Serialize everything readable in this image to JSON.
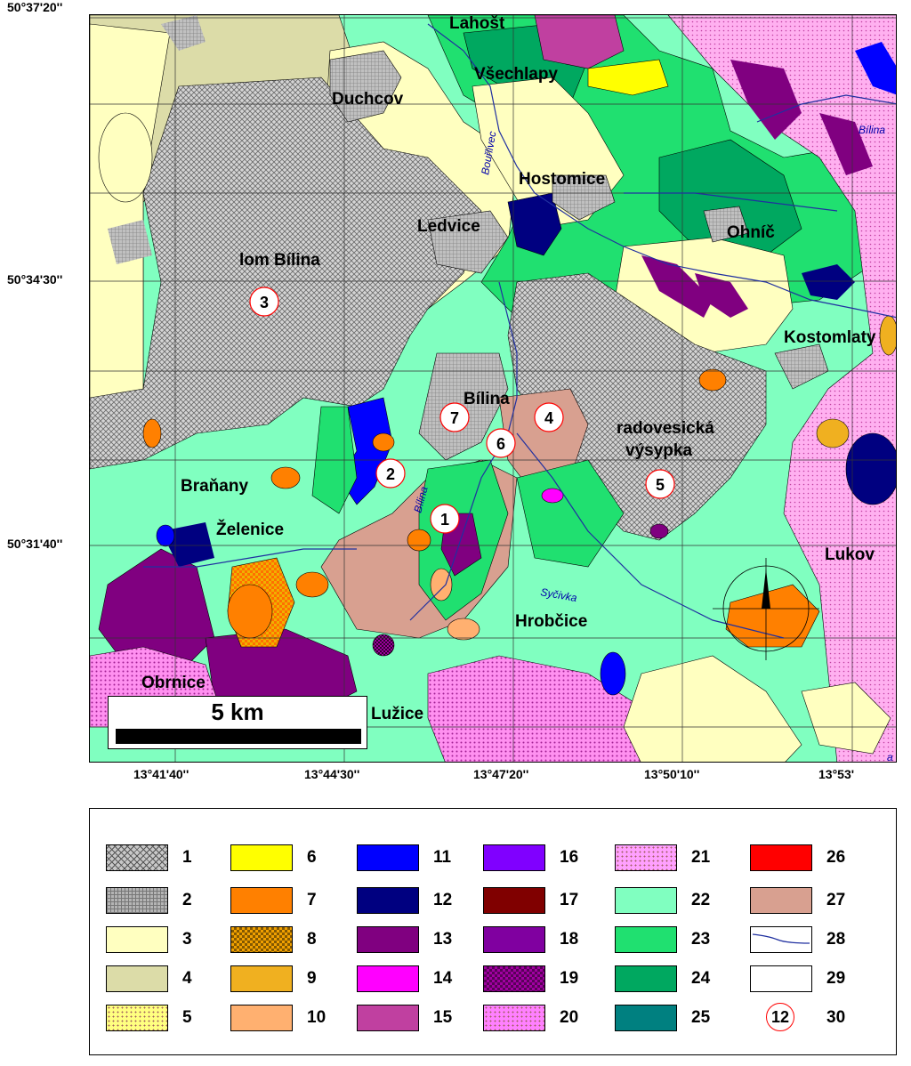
{
  "coordinates": {
    "latitudes": [
      "50°37'20''",
      "50°34'30''",
      "50°31'40''"
    ],
    "longitudes": [
      "13°41'40''",
      "13°44'30''",
      "13°47'20''",
      "13°50'10''",
      "13°53'"
    ]
  },
  "places": [
    "Lahošt",
    "Všechlapy",
    "Duchcov",
    "Hostomice",
    "Ledvice",
    "Ohníč",
    "lom Bílina",
    "Kostomlaty",
    "Bílina",
    "radovesická",
    "výsypka",
    "Braňany",
    "Želenice",
    "Lukov",
    "Hrobčice",
    "Obrnice",
    "Lužice"
  ],
  "rivers": [
    "Bouřlivec",
    "Bílina",
    "Bílina",
    "Syčivka",
    "a"
  ],
  "sites": [
    "1",
    "2",
    "3",
    "4",
    "5",
    "6",
    "7"
  ],
  "scale": {
    "label": "5 km"
  },
  "legend": {
    "items": [
      {
        "num": "1",
        "color": "#c8c8c8",
        "pattern": "crosshatch"
      },
      {
        "num": "2",
        "color": "#b4b4b4",
        "pattern": "grid"
      },
      {
        "num": "3",
        "color": "#ffffc0",
        "pattern": "solid"
      },
      {
        "num": "4",
        "color": "#dcdca8",
        "pattern": "solid"
      },
      {
        "num": "5",
        "color": "#ffff80",
        "pattern": "dots"
      },
      {
        "num": "6",
        "color": "#ffff00",
        "pattern": "solid"
      },
      {
        "num": "7",
        "color": "#ff8000",
        "pattern": "solid"
      },
      {
        "num": "8",
        "color": "#f0a000",
        "pattern": "checker"
      },
      {
        "num": "9",
        "color": "#f0b020",
        "pattern": "solid"
      },
      {
        "num": "10",
        "color": "#ffb070",
        "pattern": "solid"
      },
      {
        "num": "11",
        "color": "#0000ff",
        "pattern": "solid"
      },
      {
        "num": "12",
        "color": "#000080",
        "pattern": "solid"
      },
      {
        "num": "13",
        "color": "#800080",
        "pattern": "solid"
      },
      {
        "num": "14",
        "color": "#ff00ff",
        "pattern": "solid"
      },
      {
        "num": "15",
        "color": "#c040a0",
        "pattern": "solid"
      },
      {
        "num": "16",
        "color": "#8000ff",
        "pattern": "solid"
      },
      {
        "num": "17",
        "color": "#800000",
        "pattern": "solid"
      },
      {
        "num": "18",
        "color": "#8000a0",
        "pattern": "solid"
      },
      {
        "num": "19",
        "color": "#a000a0",
        "pattern": "checker"
      },
      {
        "num": "20",
        "color": "#ff80ff",
        "pattern": "dots"
      },
      {
        "num": "21",
        "color": "#ffa0ff",
        "pattern": "dots"
      },
      {
        "num": "22",
        "color": "#80ffc0",
        "pattern": "solid"
      },
      {
        "num": "23",
        "color": "#20e070",
        "pattern": "solid"
      },
      {
        "num": "24",
        "color": "#00a860",
        "pattern": "solid"
      },
      {
        "num": "25",
        "color": "#008080",
        "pattern": "solid"
      },
      {
        "num": "26",
        "color": "#ff0000",
        "pattern": "solid"
      },
      {
        "num": "27",
        "color": "#d8a090",
        "pattern": "solid"
      },
      {
        "num": "28",
        "color": "#ffffff",
        "pattern": "river"
      },
      {
        "num": "29",
        "color": "#ffffff",
        "pattern": "solid"
      },
      {
        "num": "30",
        "color": "#ffffff",
        "pattern": "site",
        "site_label": "12"
      }
    ]
  }
}
